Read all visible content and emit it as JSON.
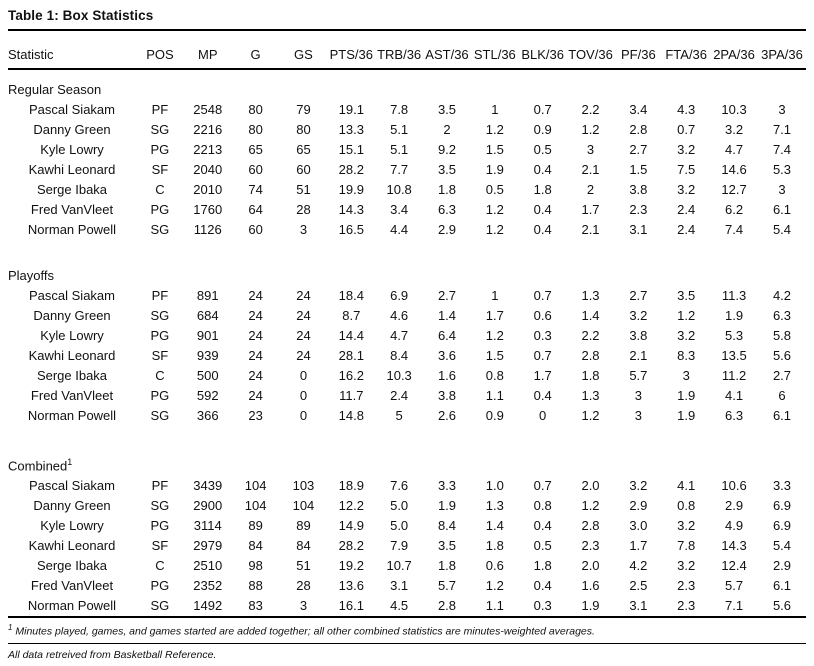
{
  "title": "Table 1: Box Statistics",
  "table": {
    "columns": [
      "Statistic",
      "POS",
      "MP",
      "G",
      "GS",
      "PTS/36",
      "TRB/36",
      "AST/36",
      "STL/36",
      "BLK/36",
      "TOV/36",
      "PF/36",
      "FTA/36",
      "2PA/36",
      "3PA/36"
    ],
    "sections": [
      {
        "label": "Regular Season",
        "superscript": "",
        "rows": [
          [
            "Pascal Siakam",
            "PF",
            "2548",
            "80",
            "79",
            "19.1",
            "7.8",
            "3.5",
            "1",
            "0.7",
            "2.2",
            "3.4",
            "4.3",
            "10.3",
            "3"
          ],
          [
            "Danny Green",
            "SG",
            "2216",
            "80",
            "80",
            "13.3",
            "5.1",
            "2",
            "1.2",
            "0.9",
            "1.2",
            "2.8",
            "0.7",
            "3.2",
            "7.1"
          ],
          [
            "Kyle Lowry",
            "PG",
            "2213",
            "65",
            "65",
            "15.1",
            "5.1",
            "9.2",
            "1.5",
            "0.5",
            "3",
            "2.7",
            "3.2",
            "4.7",
            "7.4"
          ],
          [
            "Kawhi Leonard",
            "SF",
            "2040",
            "60",
            "60",
            "28.2",
            "7.7",
            "3.5",
            "1.9",
            "0.4",
            "2.1",
            "1.5",
            "7.5",
            "14.6",
            "5.3"
          ],
          [
            "Serge Ibaka",
            "C",
            "2010",
            "74",
            "51",
            "19.9",
            "10.8",
            "1.8",
            "0.5",
            "1.8",
            "2",
            "3.8",
            "3.2",
            "12.7",
            "3"
          ],
          [
            "Fred VanVleet",
            "PG",
            "1760",
            "64",
            "28",
            "14.3",
            "3.4",
            "6.3",
            "1.2",
            "0.4",
            "1.7",
            "2.3",
            "2.4",
            "6.2",
            "6.1"
          ],
          [
            "Norman Powell",
            "SG",
            "1126",
            "60",
            "3",
            "16.5",
            "4.4",
            "2.9",
            "1.2",
            "0.4",
            "2.1",
            "3.1",
            "2.4",
            "7.4",
            "5.4"
          ]
        ]
      },
      {
        "label": "Playoffs",
        "superscript": "",
        "rows": [
          [
            "Pascal Siakam",
            "PF",
            "891",
            "24",
            "24",
            "18.4",
            "6.9",
            "2.7",
            "1",
            "0.7",
            "1.3",
            "2.7",
            "3.5",
            "11.3",
            "4.2"
          ],
          [
            "Danny Green",
            "SG",
            "684",
            "24",
            "24",
            "8.7",
            "4.6",
            "1.4",
            "1.7",
            "0.6",
            "1.4",
            "3.2",
            "1.2",
            "1.9",
            "6.3"
          ],
          [
            "Kyle Lowry",
            "PG",
            "901",
            "24",
            "24",
            "14.4",
            "4.7",
            "6.4",
            "1.2",
            "0.3",
            "2.2",
            "3.8",
            "3.2",
            "5.3",
            "5.8"
          ],
          [
            "Kawhi Leonard",
            "SF",
            "939",
            "24",
            "24",
            "28.1",
            "8.4",
            "3.6",
            "1.5",
            "0.7",
            "2.8",
            "2.1",
            "8.3",
            "13.5",
            "5.6"
          ],
          [
            "Serge Ibaka",
            "C",
            "500",
            "24",
            "0",
            "16.2",
            "10.3",
            "1.6",
            "0.8",
            "1.7",
            "1.8",
            "5.7",
            "3",
            "11.2",
            "2.7"
          ],
          [
            "Fred VanVleet",
            "PG",
            "592",
            "24",
            "0",
            "11.7",
            "2.4",
            "3.8",
            "1.1",
            "0.4",
            "1.3",
            "3",
            "1.9",
            "4.1",
            "6"
          ],
          [
            "Norman Powell",
            "SG",
            "366",
            "23",
            "0",
            "14.8",
            "5",
            "2.6",
            "0.9",
            "0",
            "1.2",
            "3",
            "1.9",
            "6.3",
            "6.1"
          ]
        ]
      },
      {
        "label": "Combined",
        "superscript": "1",
        "rows": [
          [
            "Pascal Siakam",
            "PF",
            "3439",
            "104",
            "103",
            "18.9",
            "7.6",
            "3.3",
            "1.0",
            "0.7",
            "2.0",
            "3.2",
            "4.1",
            "10.6",
            "3.3"
          ],
          [
            "Danny Green",
            "SG",
            "2900",
            "104",
            "104",
            "12.2",
            "5.0",
            "1.9",
            "1.3",
            "0.8",
            "1.2",
            "2.9",
            "0.8",
            "2.9",
            "6.9"
          ],
          [
            "Kyle Lowry",
            "PG",
            "3114",
            "89",
            "89",
            "14.9",
            "5.0",
            "8.4",
            "1.4",
            "0.4",
            "2.8",
            "3.0",
            "3.2",
            "4.9",
            "6.9"
          ],
          [
            "Kawhi Leonard",
            "SF",
            "2979",
            "84",
            "84",
            "28.2",
            "7.9",
            "3.5",
            "1.8",
            "0.5",
            "2.3",
            "1.7",
            "7.8",
            "14.3",
            "5.4"
          ],
          [
            "Serge Ibaka",
            "C",
            "2510",
            "98",
            "51",
            "19.2",
            "10.7",
            "1.8",
            "0.6",
            "1.8",
            "2.0",
            "4.2",
            "3.2",
            "12.4",
            "2.9"
          ],
          [
            "Fred VanVleet",
            "PG",
            "2352",
            "88",
            "28",
            "13.6",
            "3.1",
            "5.7",
            "1.2",
            "0.4",
            "1.6",
            "2.5",
            "2.3",
            "5.7",
            "6.1"
          ],
          [
            "Norman Powell",
            "SG",
            "1492",
            "83",
            "3",
            "16.1",
            "4.5",
            "2.8",
            "1.1",
            "0.3",
            "1.9",
            "3.1",
            "2.3",
            "7.1",
            "5.6"
          ]
        ]
      }
    ]
  },
  "footnotes": [
    {
      "marker": "1",
      "text": " Minutes played, games, and games started are added together; all other combined statistics are minutes-weighted averages."
    },
    {
      "marker": "",
      "text": "All data retreived from Basketball Reference."
    }
  ]
}
